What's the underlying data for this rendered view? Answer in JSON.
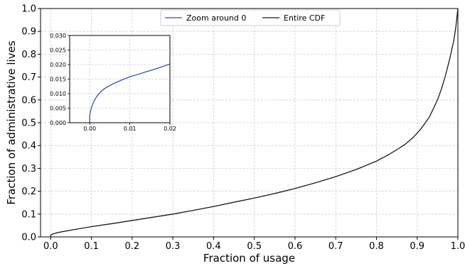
{
  "chart_data": {
    "type": "line",
    "xlabel": "Fraction of usage",
    "ylabel": "Fraction of administrative lives",
    "xlim": [
      -0.025,
      1.0
    ],
    "ylim": [
      0.0,
      1.0
    ],
    "xticks": [
      "0.0",
      "0.1",
      "0.2",
      "0.3",
      "0.4",
      "0.5",
      "0.6",
      "0.7",
      "0.8",
      "0.9",
      "1.0"
    ],
    "yticks": [
      "0.0",
      "0.1",
      "0.2",
      "0.3",
      "0.4",
      "0.5",
      "0.6",
      "0.7",
      "0.8",
      "0.9",
      "1.0"
    ],
    "grid": true,
    "legend_position": "top-center",
    "series": [
      {
        "name": "Entire CDF",
        "color": "#1a1a1a",
        "x": [
          0.0,
          0.0,
          0.005,
          0.02,
          0.05,
          0.1,
          0.15,
          0.2,
          0.25,
          0.3,
          0.35,
          0.4,
          0.45,
          0.5,
          0.55,
          0.6,
          0.65,
          0.7,
          0.75,
          0.8,
          0.83,
          0.85,
          0.87,
          0.89,
          0.91,
          0.93,
          0.95,
          0.96,
          0.97,
          0.98,
          0.99,
          0.995,
          1.0
        ],
        "y": [
          0.0,
          0.008,
          0.013,
          0.02,
          0.03,
          0.045,
          0.058,
          0.072,
          0.086,
          0.1,
          0.116,
          0.133,
          0.152,
          0.17,
          0.19,
          0.212,
          0.237,
          0.264,
          0.295,
          0.332,
          0.36,
          0.382,
          0.405,
          0.435,
          0.475,
          0.525,
          0.6,
          0.65,
          0.71,
          0.78,
          0.86,
          0.92,
          1.0
        ]
      }
    ],
    "inset": {
      "xlim": [
        -0.005,
        0.02
      ],
      "ylim": [
        0.0,
        0.03
      ],
      "xticks": [
        "0.00",
        "0.01",
        "0.02"
      ],
      "yticks": [
        "0.000",
        "0.005",
        "0.010",
        "0.015",
        "0.020",
        "0.025",
        "0.030"
      ],
      "series": [
        {
          "name": "Zoom around 0",
          "color": "#3b4fa6",
          "x": [
            0.0,
            0.0,
            0.0002,
            0.0005,
            0.001,
            0.0015,
            0.002,
            0.003,
            0.004,
            0.005,
            0.006,
            0.008,
            0.01,
            0.012,
            0.014,
            0.016,
            0.018,
            0.02
          ],
          "y": [
            0.0,
            0.0025,
            0.004,
            0.0055,
            0.0072,
            0.0085,
            0.0095,
            0.011,
            0.012,
            0.0128,
            0.0135,
            0.0147,
            0.0158,
            0.0166,
            0.0175,
            0.0183,
            0.0192,
            0.0202
          ]
        }
      ]
    }
  }
}
